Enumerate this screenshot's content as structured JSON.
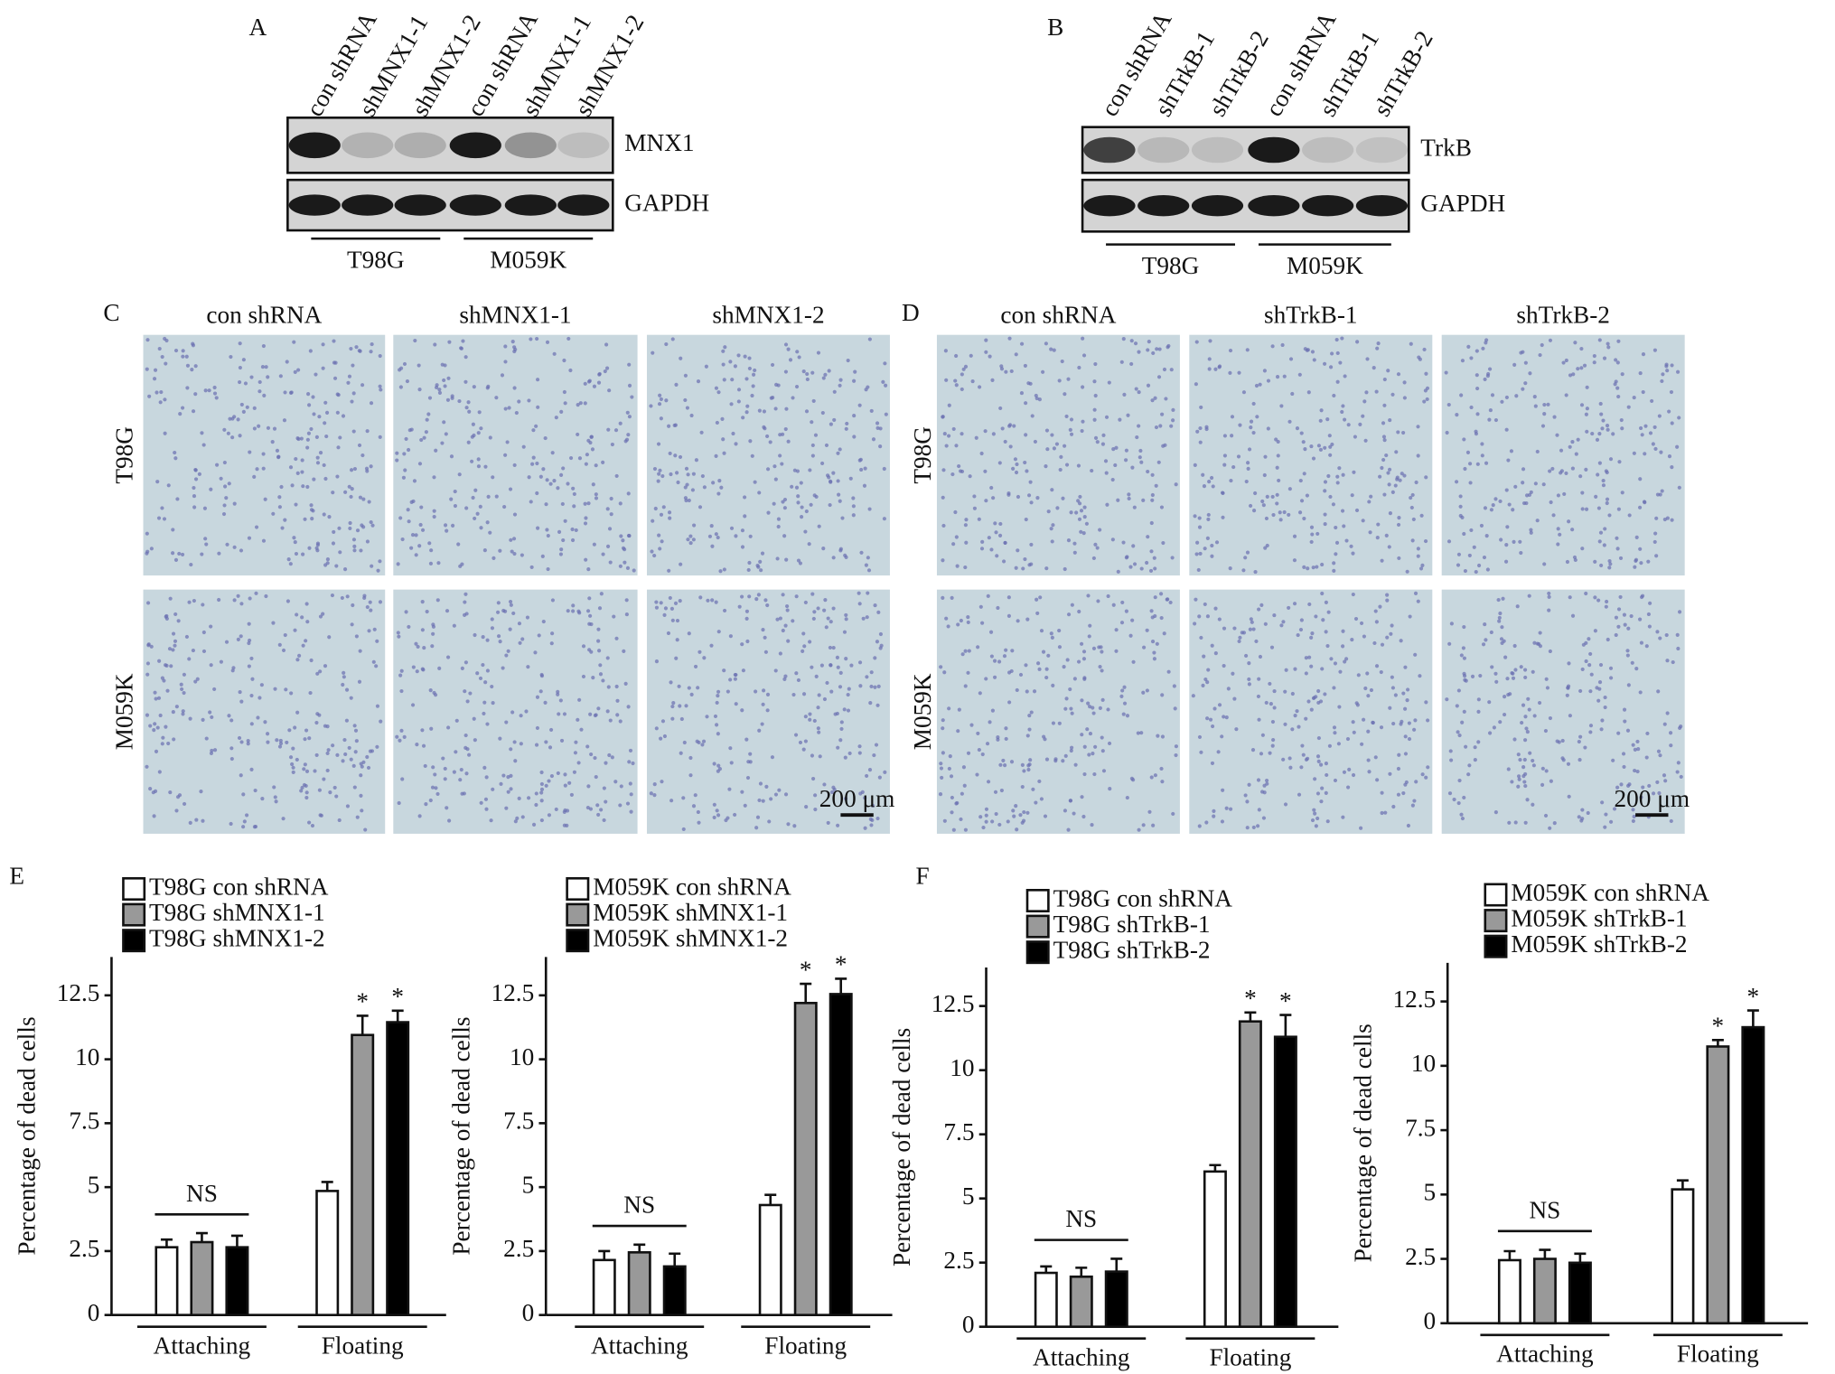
{
  "blots": [
    {
      "letter": "A",
      "lanes": [
        "con shRNA",
        "shMNX1-1",
        "shMNX1-2",
        "con shRNA",
        "shMNX1-1",
        "shMNX1-2"
      ],
      "bands": [
        "MNX1",
        "GAPDH"
      ],
      "groups": [
        "T98G",
        "M059K"
      ]
    },
    {
      "letter": "B",
      "lanes": [
        "con shRNA",
        "shTrkB-1",
        "shTrkB-2",
        "con shRNA",
        "shTrkB-1",
        "shTrkB-2"
      ],
      "bands": [
        "TrkB",
        "GAPDH"
      ],
      "groups": [
        "T98G",
        "M059K"
      ]
    }
  ],
  "micrographs": [
    {
      "letter": "C",
      "columns": [
        "con shRNA",
        "shMNX1-1",
        "shMNX1-2"
      ],
      "rows": [
        "T98G",
        "M059K"
      ],
      "scale_bar": "200 μm"
    },
    {
      "letter": "D",
      "columns": [
        "con shRNA",
        "shTrkB-1",
        "shTrkB-2"
      ],
      "rows": [
        "T98G",
        "M059K"
      ],
      "scale_bar": "200 μm"
    }
  ],
  "chart_panels": [
    "E",
    "F"
  ],
  "chart_data": [
    {
      "type": "bar",
      "ylabel": "Percentage of dead cells",
      "categories": [
        "Attaching",
        "Floating"
      ],
      "ylim": [
        0,
        14
      ],
      "yticks": [
        0,
        2.5,
        5,
        7.5,
        10,
        12.5
      ],
      "annotation": "NS",
      "series": [
        {
          "name": "T98G con shRNA",
          "color": "#ffffff",
          "values": [
            2.65,
            4.85
          ],
          "errors": [
            0.3,
            0.35
          ],
          "significance": [
            null,
            null
          ]
        },
        {
          "name": "T98G shMNX1-1",
          "color": "#999999",
          "values": [
            2.85,
            10.95
          ],
          "errors": [
            0.35,
            0.75
          ],
          "significance": [
            null,
            "*"
          ]
        },
        {
          "name": "T98G shMNX1-2",
          "color": "#000000",
          "values": [
            2.65,
            11.45
          ],
          "errors": [
            0.45,
            0.45
          ],
          "significance": [
            null,
            "*"
          ]
        }
      ]
    },
    {
      "type": "bar",
      "ylabel": "Percentage of dead cells",
      "categories": [
        "Attaching",
        "Floating"
      ],
      "ylim": [
        0,
        14
      ],
      "yticks": [
        0,
        2.5,
        5,
        7.5,
        10,
        12.5
      ],
      "annotation": "NS",
      "series": [
        {
          "name": "M059K con shRNA",
          "color": "#ffffff",
          "values": [
            2.15,
            4.3
          ],
          "errors": [
            0.35,
            0.4
          ],
          "significance": [
            null,
            null
          ]
        },
        {
          "name": "M059K shMNX1-1",
          "color": "#999999",
          "values": [
            2.45,
            12.2
          ],
          "errors": [
            0.3,
            0.75
          ],
          "significance": [
            null,
            "*"
          ]
        },
        {
          "name": "M059K shMNX1-2",
          "color": "#000000",
          "values": [
            1.9,
            12.55
          ],
          "errors": [
            0.5,
            0.6
          ],
          "significance": [
            null,
            "*"
          ]
        }
      ]
    },
    {
      "type": "bar",
      "ylabel": "Percentage of dead cells",
      "categories": [
        "Attaching",
        "Floating"
      ],
      "ylim": [
        0,
        14
      ],
      "yticks": [
        0,
        2.5,
        5,
        7.5,
        10,
        12.5
      ],
      "annotation": "NS",
      "series": [
        {
          "name": "T98G con shRNA",
          "color": "#ffffff",
          "values": [
            2.1,
            6.05
          ],
          "errors": [
            0.25,
            0.25
          ],
          "significance": [
            null,
            null
          ]
        },
        {
          "name": "T98G shTrkB-1",
          "color": "#999999",
          "values": [
            1.95,
            11.9
          ],
          "errors": [
            0.35,
            0.35
          ],
          "significance": [
            null,
            "*"
          ]
        },
        {
          "name": "T98G shTrkB-2",
          "color": "#000000",
          "values": [
            2.15,
            11.3
          ],
          "errors": [
            0.5,
            0.85
          ],
          "significance": [
            null,
            "*"
          ]
        }
      ]
    },
    {
      "type": "bar",
      "ylabel": "Percentage of dead cells",
      "categories": [
        "Attaching",
        "Floating"
      ],
      "ylim": [
        0,
        14
      ],
      "yticks": [
        0,
        2.5,
        5,
        7.5,
        10,
        12.5
      ],
      "annotation": "NS",
      "series": [
        {
          "name": "M059K con shRNA",
          "color": "#ffffff",
          "values": [
            2.45,
            5.2
          ],
          "errors": [
            0.35,
            0.35
          ],
          "significance": [
            null,
            null
          ]
        },
        {
          "name": "M059K shTrkB-1",
          "color": "#999999",
          "values": [
            2.5,
            10.75
          ],
          "errors": [
            0.35,
            0.25
          ],
          "significance": [
            null,
            "*"
          ]
        },
        {
          "name": "M059K shTrkB-2",
          "color": "#000000",
          "values": [
            2.35,
            11.5
          ],
          "errors": [
            0.35,
            0.65
          ],
          "significance": [
            null,
            "*"
          ]
        }
      ]
    }
  ]
}
